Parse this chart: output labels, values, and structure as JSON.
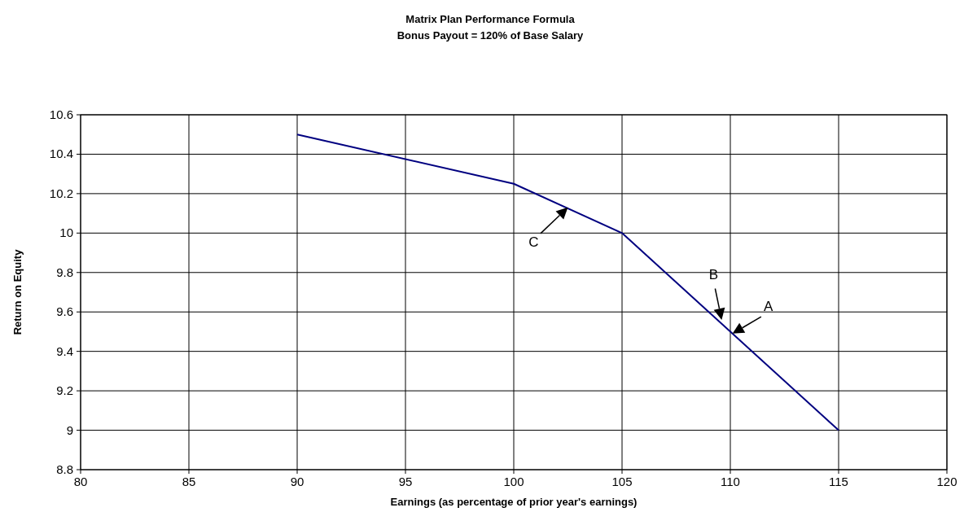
{
  "chart_data": {
    "type": "line",
    "title": "Matrix Plan Performance Formula",
    "subtitle": "Bonus Payout = 120% of Base Salary",
    "xlabel": "Earnings (as percentage of prior year's earnings)",
    "ylabel": "Return on Equity",
    "x": [
      90,
      100,
      105,
      115
    ],
    "series": [
      {
        "color": "#000080",
        "values": [
          10.5,
          10.25,
          10,
          9
        ]
      }
    ],
    "xlim": [
      80,
      120
    ],
    "xticks": [
      80,
      85,
      90,
      95,
      100,
      105,
      110,
      115,
      120
    ],
    "ylim": [
      8.8,
      10.6
    ],
    "yticks": [
      8.8,
      9,
      9.2,
      9.4,
      9.6,
      9.8,
      10,
      10.2,
      10.4,
      10.6
    ],
    "grid": true,
    "marker": "none",
    "line_style": "solid",
    "annotations": [
      {
        "text": "C",
        "x": 102.5,
        "y": 10.13
      },
      {
        "text": "B",
        "x": 109.6,
        "y": 9.56
      },
      {
        "text": "A",
        "x": 110.1,
        "y": 9.49
      }
    ]
  }
}
